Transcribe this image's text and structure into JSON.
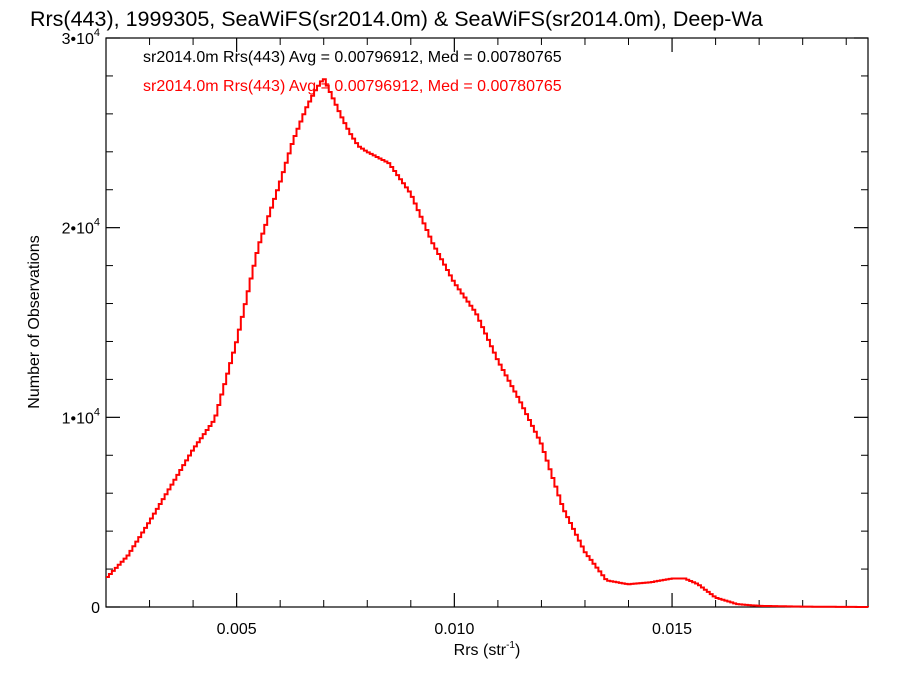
{
  "chart_data": {
    "type": "line",
    "title": "Rrs(443), 1999305, SeaWiFS(sr2014.0m) & SeaWiFS(sr2014.0m), Deep-Wa",
    "xlabel": "Rrs (str",
    "xlabel_sup": "-1",
    "xlabel_close": ")",
    "ylabel": "Number of Observations",
    "xlim": [
      0.002,
      0.0195
    ],
    "ylim": [
      0,
      30000
    ],
    "xticks": [
      {
        "value": 0.005,
        "label": "0.005"
      },
      {
        "value": 0.01,
        "label": "0.010"
      },
      {
        "value": 0.015,
        "label": "0.015"
      }
    ],
    "yticks": [
      {
        "value": 0,
        "base": "0",
        "exp": ""
      },
      {
        "value": 10000,
        "base": "1•10",
        "exp": "4"
      },
      {
        "value": 20000,
        "base": "2•10",
        "exp": "4"
      },
      {
        "value": 30000,
        "base": "3•10",
        "exp": "4"
      }
    ],
    "annotations": [
      {
        "text": "sr2014.0m Rrs(443) Avg = 0.00796912, Med = 0.00780765",
        "color": "#000000"
      },
      {
        "text": "sr2014.0m Rrs(443) Avg = 0.00796912, Med = 0.00780765",
        "color": "#ff0000"
      }
    ],
    "series": [
      {
        "color": "#ff0000",
        "x": [
          0.002,
          0.0025,
          0.003,
          0.0035,
          0.004,
          0.0045,
          0.005,
          0.0055,
          0.006,
          0.0063,
          0.0066,
          0.0068,
          0.007,
          0.0072,
          0.0074,
          0.0076,
          0.0078,
          0.008,
          0.0085,
          0.009,
          0.0095,
          0.01,
          0.0105,
          0.011,
          0.0115,
          0.012,
          0.0125,
          0.013,
          0.0135,
          0.014,
          0.0145,
          0.015,
          0.0153,
          0.0156,
          0.016,
          0.0165,
          0.017,
          0.018,
          0.0195
        ],
        "y": [
          1500,
          2700,
          4500,
          6400,
          8300,
          9900,
          14000,
          19000,
          22400,
          24600,
          26300,
          27200,
          27900,
          26900,
          25900,
          25000,
          24300,
          24000,
          23400,
          21800,
          19200,
          17100,
          15500,
          13000,
          10900,
          8600,
          5200,
          2900,
          1400,
          1200,
          1300,
          1500,
          1500,
          1200,
          500,
          150,
          60,
          20,
          0
        ]
      }
    ]
  }
}
